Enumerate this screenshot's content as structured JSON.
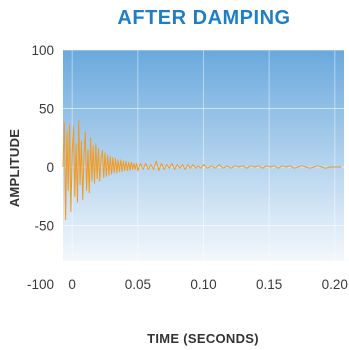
{
  "colors": {
    "title": "#1f7fc6",
    "axis_text": "#333333",
    "tick_text": "#3a3a3a",
    "series": "#f29a1f",
    "plot_bg_top": "#6aa9dd",
    "plot_bg_bottom": "#f4f8fc",
    "grid": "#ffffff"
  },
  "chart_data": {
    "type": "line",
    "title": "AFTER DAMPING",
    "xlabel": "TIME (SECONDS)",
    "ylabel": "AMPLITUDE",
    "xlim": [
      -0.007,
      0.207
    ],
    "ylim": [
      -100,
      100
    ],
    "x_ticks": [
      0,
      0.05,
      0.1,
      0.15,
      0.2
    ],
    "x_tick_labels": [
      "0",
      "0.05",
      "0.10",
      "0.15",
      "0.20"
    ],
    "y_ticks": [
      100,
      50,
      0,
      -50,
      -100
    ],
    "y_tick_labels": [
      "100",
      "50",
      "0",
      "-50",
      "-100"
    ],
    "grid": "on",
    "series": [
      {
        "x": [
          -0.007,
          -0.006,
          -0.005,
          -0.004,
          -0.003,
          -0.002,
          -0.001,
          0.0,
          0.001,
          0.002,
          0.003,
          0.004,
          0.005,
          0.006,
          0.007,
          0.008,
          0.009,
          0.01,
          0.011,
          0.012,
          0.013,
          0.014,
          0.015,
          0.016,
          0.017,
          0.018,
          0.019,
          0.02,
          0.021,
          0.022,
          0.023,
          0.024,
          0.025,
          0.026,
          0.027,
          0.028,
          0.029,
          0.03,
          0.031,
          0.032,
          0.033,
          0.034,
          0.035,
          0.036,
          0.037,
          0.038,
          0.039,
          0.04,
          0.041,
          0.042,
          0.043,
          0.044,
          0.045,
          0.046,
          0.047,
          0.048,
          0.049,
          0.05,
          0.052,
          0.054,
          0.056,
          0.058,
          0.06,
          0.062,
          0.064,
          0.066,
          0.068,
          0.07,
          0.072,
          0.074,
          0.076,
          0.078,
          0.08,
          0.082,
          0.084,
          0.086,
          0.088,
          0.09,
          0.092,
          0.094,
          0.096,
          0.098,
          0.1,
          0.103,
          0.106,
          0.109,
          0.112,
          0.115,
          0.118,
          0.121,
          0.124,
          0.127,
          0.13,
          0.133,
          0.136,
          0.139,
          0.142,
          0.145,
          0.148,
          0.151,
          0.154,
          0.157,
          0.16,
          0.163,
          0.166,
          0.169,
          0.172,
          0.175,
          0.178,
          0.181,
          0.184,
          0.187,
          0.19,
          0.193,
          0.196,
          0.199,
          0.202,
          0.205
        ],
        "y": [
          0,
          38,
          -45,
          30,
          -20,
          36,
          -38,
          12,
          35,
          -25,
          20,
          -30,
          40,
          -15,
          22,
          -28,
          10,
          30,
          -20,
          15,
          -22,
          25,
          -12,
          18,
          -14,
          20,
          -10,
          16,
          -12,
          8,
          14,
          -9,
          12,
          -8,
          10,
          -7,
          9,
          -6,
          8,
          -5,
          7,
          -5,
          6,
          -4,
          6,
          -4,
          5,
          -3,
          5,
          -3,
          4,
          -3,
          4,
          -2,
          3,
          -2,
          3,
          -3,
          3,
          -2,
          3,
          -2,
          2,
          -2,
          5,
          -3,
          3,
          -2,
          2,
          -1,
          3,
          -2,
          2,
          -1,
          2,
          -2,
          2,
          -1,
          2,
          -1,
          1,
          -1,
          2,
          -1,
          1,
          -1,
          2,
          -1,
          1,
          -1,
          1,
          0,
          1,
          -1,
          1,
          0,
          1,
          -1,
          1,
          0,
          1,
          -1,
          1,
          0,
          1,
          -1,
          0,
          1,
          0,
          -1,
          0,
          1,
          0,
          -1,
          0,
          0,
          0,
          0
        ]
      }
    ]
  }
}
